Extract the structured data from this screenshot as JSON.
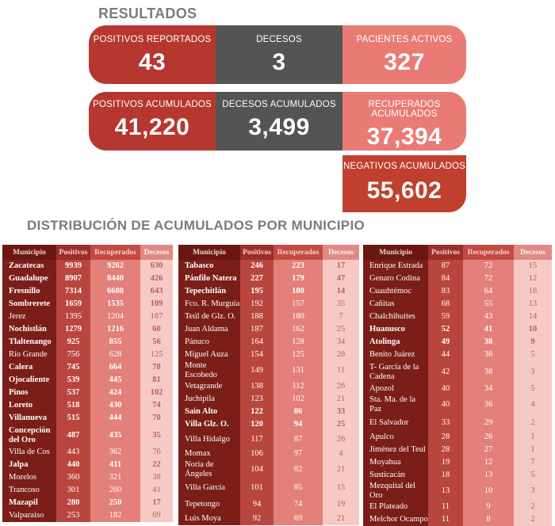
{
  "titles": {
    "resultados": "RESULTADOS",
    "distribucion": "DISTRIBUCIÓN DE ACUMULADOS POR MUNICIPIO"
  },
  "cards": {
    "positivos_reportados": {
      "label": "POSITIVOS REPORTADOS",
      "value": "43"
    },
    "decesos": {
      "label": "DECESOS",
      "value": "3"
    },
    "pacientes_activos": {
      "label": "PACIENTES ACTIVOS",
      "value": "327"
    },
    "positivos_acumulados": {
      "label": "POSITIVOS ACUMULADOS",
      "value": "41,220"
    },
    "decesos_acumulados": {
      "label": "DECESOS ACUMULADOS",
      "value": "3,499"
    },
    "recuperados_acumulados": {
      "label": "RECUPERADOS ACUMULADOS",
      "value": "37,394"
    },
    "negativos_acumulados": {
      "label": "NEGATIVOS ACUMULADOS",
      "value": "55,602"
    }
  },
  "table_headers": [
    "Municipio",
    "Positivos",
    "Recuperados",
    "Decesos"
  ],
  "colors": {
    "card_dark_red": "#b5372f",
    "card_gray": "#545454",
    "card_pink": "#e97b74",
    "title_gray": "#7b7b7b"
  },
  "tables": [
    {
      "rows": [
        {
          "m": "Zacatecas",
          "p": "9939",
          "r": "9262",
          "d": "630",
          "bold": true,
          "h": 16
        },
        {
          "m": "Guadalupe",
          "p": "8907",
          "r": "8440",
          "d": "426",
          "bold": true,
          "h": 16
        },
        {
          "m": "Fresnillo",
          "p": "7314",
          "r": "6608",
          "d": "643",
          "bold": true,
          "h": 16
        },
        {
          "m": "Sombrerete",
          "p": "1659",
          "r": "1535",
          "d": "109",
          "bold": true,
          "h": 16
        },
        {
          "m": "Jerez",
          "p": "1395",
          "r": "1204",
          "d": "187",
          "bold": false,
          "h": 16
        },
        {
          "m": "Nochistlán",
          "p": "1279",
          "r": "1216",
          "d": "60",
          "bold": true,
          "h": 16
        },
        {
          "m": "Tlaltenango",
          "p": "925",
          "r": "855",
          "d": "56",
          "bold": true,
          "h": 16
        },
        {
          "m": "Río Grande",
          "p": "756",
          "r": "628",
          "d": "125",
          "bold": false,
          "h": 16
        },
        {
          "m": "Calera",
          "p": "745",
          "r": "664",
          "d": "78",
          "bold": true,
          "h": 16
        },
        {
          "m": "Ojocaliente",
          "p": "539",
          "r": "445",
          "d": "81",
          "bold": true,
          "h": 16
        },
        {
          "m": "Pinos",
          "p": "537",
          "r": "424",
          "d": "102",
          "bold": true,
          "h": 16
        },
        {
          "m": "Loreto",
          "p": "518",
          "r": "430",
          "d": "74",
          "bold": true,
          "h": 16
        },
        {
          "m": "Villanueva",
          "p": "515",
          "r": "444",
          "d": "70",
          "bold": true,
          "h": 16
        },
        {
          "m": "Concepción del Oro",
          "p": "487",
          "r": "435",
          "d": "35",
          "bold": true,
          "h": 27
        },
        {
          "m": "Villa de Cos",
          "p": "443",
          "r": "362",
          "d": "76",
          "bold": false,
          "h": 16
        },
        {
          "m": "Jalpa",
          "p": "440",
          "r": "411",
          "d": "22",
          "bold": true,
          "h": 16
        },
        {
          "m": "Morelos",
          "p": "360",
          "r": "321",
          "d": "38",
          "bold": false,
          "h": 16
        },
        {
          "m": "Trancoso",
          "p": "301",
          "r": "260",
          "d": "41",
          "bold": false,
          "h": 16
        },
        {
          "m": "Mazapil",
          "p": "280",
          "r": "250",
          "d": "17",
          "bold": true,
          "h": 16
        },
        {
          "m": "Valparaíso",
          "p": "253",
          "r": "182",
          "d": "69",
          "bold": false,
          "h": 16
        }
      ]
    },
    {
      "rows": [
        {
          "m": "Tabasco",
          "p": "246",
          "r": "223",
          "d": "17",
          "bold": true,
          "h": 16
        },
        {
          "m": "Pánfilo Natera",
          "p": "227",
          "r": "179",
          "d": "47",
          "bold": true,
          "h": 16
        },
        {
          "m": "Tepechitlán",
          "p": "195",
          "r": "180",
          "d": "14",
          "bold": true,
          "h": 16
        },
        {
          "m": "Fco. R. Murguía",
          "p": "192",
          "r": "157",
          "d": "35",
          "bold": false,
          "h": 16
        },
        {
          "m": "Teúl de Glz. O.",
          "p": "188",
          "r": "180",
          "d": "7",
          "bold": false,
          "h": 16
        },
        {
          "m": "Juan Aldama",
          "p": "187",
          "r": "162",
          "d": "25",
          "bold": false,
          "h": 16
        },
        {
          "m": "Pánuco",
          "p": "164",
          "r": "128",
          "d": "34",
          "bold": false,
          "h": 16
        },
        {
          "m": "Miguel Auza",
          "p": "154",
          "r": "125",
          "d": "28",
          "bold": false,
          "h": 16
        },
        {
          "m": "Monte Escobedo",
          "p": "149",
          "r": "131",
          "d": "11",
          "bold": false,
          "h": 21
        },
        {
          "m": "Vetagrande",
          "p": "138",
          "r": "112",
          "d": "26",
          "bold": false,
          "h": 16
        },
        {
          "m": "Juchipila",
          "p": "123",
          "r": "102",
          "d": "21",
          "bold": false,
          "h": 16
        },
        {
          "m": "Sain Alto",
          "p": "122",
          "r": "86",
          "d": "33",
          "bold": true,
          "h": 16
        },
        {
          "m": "Villa Glz. O.",
          "p": "120",
          "r": "94",
          "d": "25",
          "bold": true,
          "h": 16
        },
        {
          "m": "Villa Hidalgo",
          "p": "117",
          "r": "87",
          "d": "26",
          "bold": false,
          "h": 21
        },
        {
          "m": "Momax",
          "p": "106",
          "r": "97",
          "d": "4",
          "bold": false,
          "h": 16
        },
        {
          "m": "Noria de Ángeles",
          "p": "104",
          "r": "82",
          "d": "21",
          "bold": false,
          "h": 16
        },
        {
          "m": "Villa García",
          "p": "101",
          "r": "85",
          "d": "15",
          "bold": false,
          "h": 21
        },
        {
          "m": "Tepetongo",
          "p": "94",
          "r": "74",
          "d": "19",
          "bold": false,
          "h": 21
        },
        {
          "m": "Luis Moya",
          "p": "92",
          "r": "69",
          "d": "21",
          "bold": false,
          "h": 16
        }
      ]
    },
    {
      "rows": [
        {
          "m": "Enrique Estrada",
          "p": "87",
          "r": "72",
          "d": "15",
          "bold": false,
          "h": 16
        },
        {
          "m": "Genaro Codina",
          "p": "84",
          "r": "72",
          "d": "12",
          "bold": false,
          "h": 16
        },
        {
          "m": "Cuauhtémoc",
          "p": "83",
          "r": "64",
          "d": "18",
          "bold": false,
          "h": 16
        },
        {
          "m": "Cañitas",
          "p": "68",
          "r": "55",
          "d": "13",
          "bold": false,
          "h": 16
        },
        {
          "m": "Chalchihuites",
          "p": "59",
          "r": "43",
          "d": "14",
          "bold": false,
          "h": 16
        },
        {
          "m": "Huanusco",
          "p": "52",
          "r": "41",
          "d": "10",
          "bold": true,
          "h": 16
        },
        {
          "m": "Atolinga",
          "p": "49",
          "r": "38",
          "d": "9",
          "bold": true,
          "h": 16
        },
        {
          "m": "Benito Juárez",
          "p": "44",
          "r": "38",
          "d": "5",
          "bold": false,
          "h": 16
        },
        {
          "m": "T- García de la Cadena",
          "p": "42",
          "r": "38",
          "d": "3",
          "bold": false,
          "h": 27
        },
        {
          "m": "Apozol",
          "p": "40",
          "r": "34",
          "d": "5",
          "bold": false,
          "h": 16
        },
        {
          "m": "Sta. Ma. de la Paz",
          "p": "40",
          "r": "36",
          "d": "4",
          "bold": false,
          "h": 16
        },
        {
          "m": "El Salvador",
          "p": "33",
          "r": "29",
          "d": "2",
          "bold": false,
          "h": 21
        },
        {
          "m": "Apulco",
          "p": "28",
          "r": "26",
          "d": "1",
          "bold": false,
          "h": 16
        },
        {
          "m": "Jiménez del Teul",
          "p": "28",
          "r": "27",
          "d": "1",
          "bold": false,
          "h": 16
        },
        {
          "m": "Moyahua",
          "p": "19",
          "r": "12",
          "d": "7",
          "bold": false,
          "h": 16
        },
        {
          "m": "Susticacán",
          "p": "18",
          "r": "13",
          "d": "5",
          "bold": false,
          "h": 16
        },
        {
          "m": "Mezquital del Oro",
          "p": "13",
          "r": "10",
          "d": "3",
          "bold": false,
          "h": 16
        },
        {
          "m": "El Plateado",
          "p": "11",
          "r": "9",
          "d": "2",
          "bold": false,
          "h": 16
        },
        {
          "m": "Melchor Ocampo",
          "p": "11",
          "r": "8",
          "d": "2",
          "bold": false,
          "h": 16
        }
      ]
    }
  ]
}
